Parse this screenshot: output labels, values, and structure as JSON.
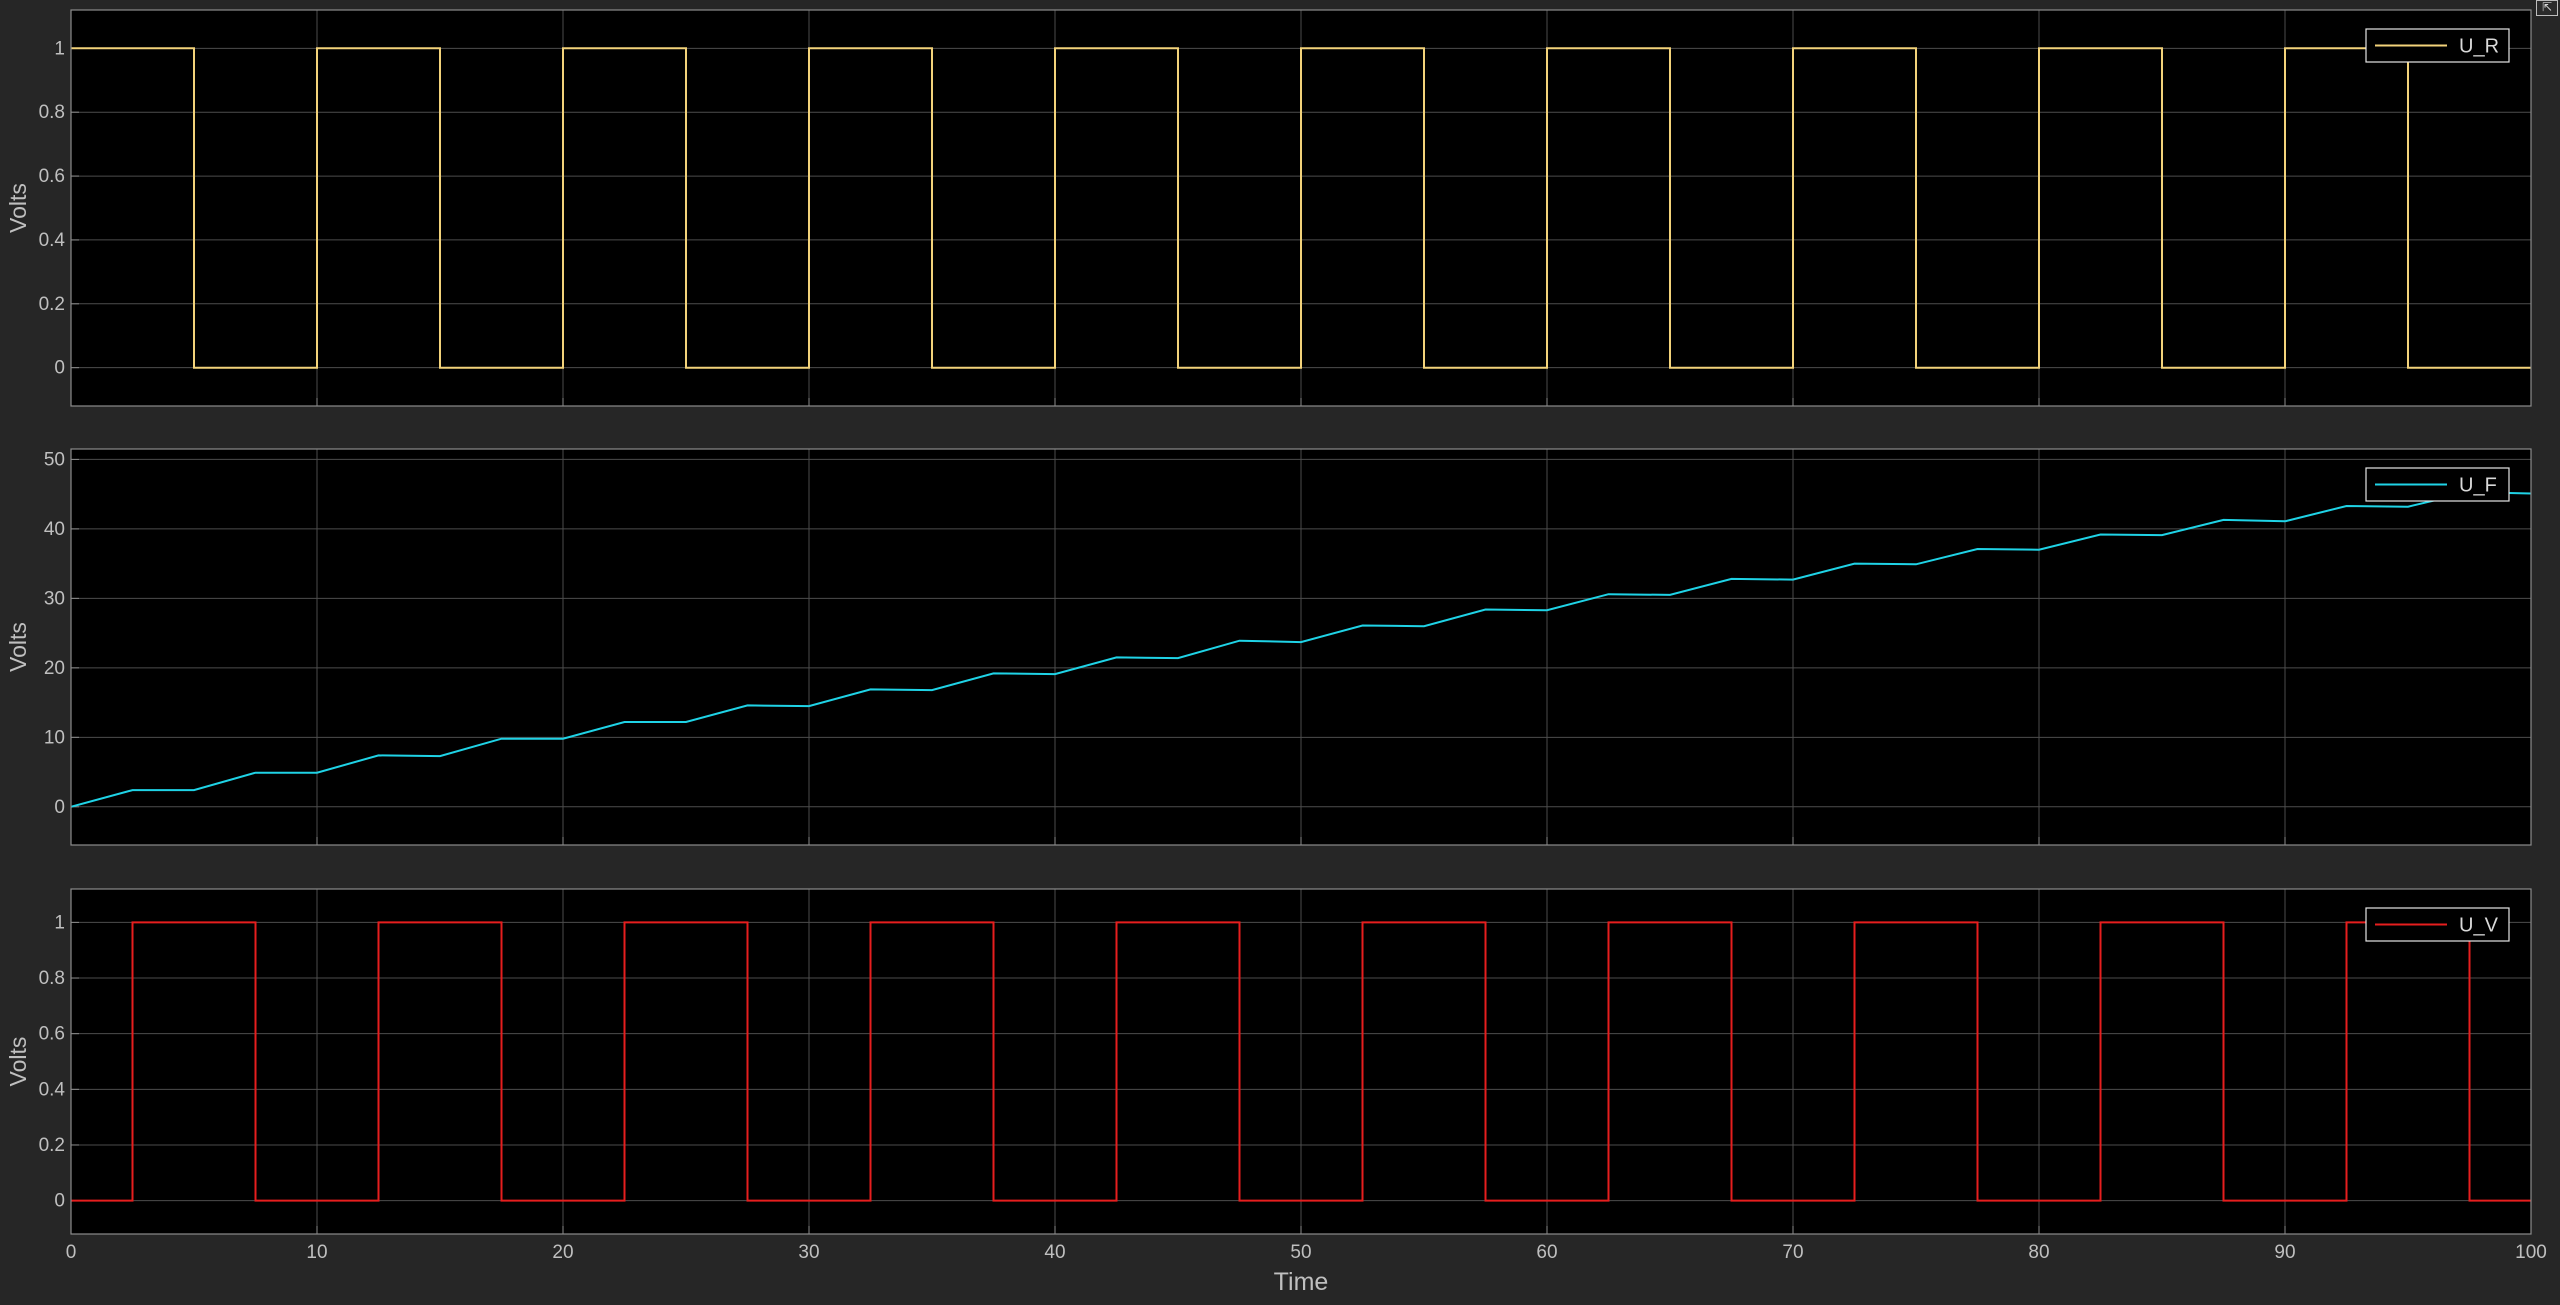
{
  "window": {
    "undock_icon": "undock-arrow-icon"
  },
  "colors": {
    "figure_background": "#262626",
    "axes_background": "#000000",
    "grid": "#4d4d4d",
    "axes_border": "#8c8c8c",
    "tick_text": "#bfbfbf",
    "label_text": "#bfbfbf",
    "legend_border": "#e6e6e6"
  },
  "chart_data": [
    {
      "type": "line",
      "id": "u_r",
      "ylabel": "Volts",
      "xlim": [
        0,
        100
      ],
      "ylim": [
        -0.12,
        1.12
      ],
      "yticks": [
        "0",
        "0.2",
        "0.4",
        "0.6",
        "0.8",
        "1"
      ],
      "ytick_values": [
        0,
        0.2,
        0.4,
        0.6,
        0.8,
        1
      ],
      "xticks_shown": false,
      "grid": true,
      "legend_placement": "top-right",
      "series": [
        {
          "name": "U_R",
          "color": "#f2d27a",
          "step": true,
          "x": [
            0,
            5,
            5,
            10,
            10,
            15,
            15,
            20,
            20,
            25,
            25,
            30,
            30,
            35,
            35,
            40,
            40,
            45,
            45,
            50,
            50,
            55,
            55,
            60,
            60,
            65,
            65,
            70,
            70,
            75,
            75,
            80,
            80,
            85,
            85,
            90,
            90,
            95,
            95,
            100
          ],
          "y": [
            1,
            1,
            0,
            0,
            1,
            1,
            0,
            0,
            1,
            1,
            0,
            0,
            1,
            1,
            0,
            0,
            1,
            1,
            0,
            0,
            1,
            1,
            0,
            0,
            1,
            1,
            0,
            0,
            1,
            1,
            0,
            0,
            1,
            1,
            0,
            0,
            1,
            1,
            0,
            0
          ]
        }
      ]
    },
    {
      "type": "line",
      "id": "u_f",
      "ylabel": "Volts",
      "xlim": [
        0,
        100
      ],
      "ylim": [
        -5.5,
        51.5
      ],
      "yticks": [
        "0",
        "10",
        "20",
        "30",
        "40",
        "50"
      ],
      "ytick_values": [
        0,
        10,
        20,
        30,
        40,
        50
      ],
      "xticks_shown": false,
      "grid": true,
      "legend_placement": "top-right",
      "series": [
        {
          "name": "U_F",
          "color": "#1fd3e6",
          "step": false,
          "x": [
            0,
            2.5,
            5,
            7.5,
            10,
            12.5,
            15,
            17.5,
            20,
            22.5,
            25,
            27.5,
            30,
            32.5,
            35,
            37.5,
            40,
            42.5,
            45,
            47.5,
            50,
            52.5,
            55,
            57.5,
            60,
            62.5,
            65,
            67.5,
            70,
            72.5,
            75,
            77.5,
            80,
            82.5,
            85,
            87.5,
            90,
            92.5,
            95,
            97.5,
            100
          ],
          "y": [
            0,
            2.4,
            2.4,
            4.9,
            4.9,
            7.4,
            7.3,
            9.8,
            9.8,
            12.2,
            12.2,
            14.6,
            14.5,
            16.9,
            16.8,
            19.2,
            19.1,
            21.5,
            21.4,
            23.9,
            23.7,
            26.1,
            26.0,
            28.4,
            28.3,
            30.6,
            30.5,
            32.8,
            32.7,
            35.0,
            34.9,
            37.1,
            37.0,
            39.2,
            39.1,
            41.3,
            41.1,
            43.3,
            43.2,
            45.3,
            45.1
          ]
        }
      ]
    },
    {
      "type": "line",
      "id": "u_v",
      "ylabel": "Volts",
      "xlabel": "Time",
      "xlim": [
        0,
        100
      ],
      "ylim": [
        -0.12,
        1.12
      ],
      "yticks": [
        "0",
        "0.2",
        "0.4",
        "0.6",
        "0.8",
        "1"
      ],
      "ytick_values": [
        0,
        0.2,
        0.4,
        0.6,
        0.8,
        1
      ],
      "xticks": [
        "0",
        "10",
        "20",
        "30",
        "40",
        "50",
        "60",
        "70",
        "80",
        "90",
        "100"
      ],
      "xtick_values": [
        0,
        10,
        20,
        30,
        40,
        50,
        60,
        70,
        80,
        90,
        100
      ],
      "xticks_shown": true,
      "grid": true,
      "legend_placement": "top-right",
      "series": [
        {
          "name": "U_V",
          "color": "#e61e1e",
          "step": true,
          "x": [
            0,
            2.5,
            2.5,
            7.5,
            7.5,
            12.5,
            12.5,
            17.5,
            17.5,
            22.5,
            22.5,
            27.5,
            27.5,
            32.5,
            32.5,
            37.5,
            37.5,
            42.5,
            42.5,
            47.5,
            47.5,
            52.5,
            52.5,
            57.5,
            57.5,
            62.5,
            62.5,
            67.5,
            67.5,
            72.5,
            72.5,
            77.5,
            77.5,
            82.5,
            82.5,
            87.5,
            87.5,
            92.5,
            92.5,
            97.5,
            97.5,
            100
          ],
          "y": [
            0,
            0,
            1,
            1,
            0,
            0,
            1,
            1,
            0,
            0,
            1,
            1,
            0,
            0,
            1,
            1,
            0,
            0,
            1,
            1,
            0,
            0,
            1,
            1,
            0,
            0,
            1,
            1,
            0,
            0,
            1,
            1,
            0,
            0,
            1,
            1,
            0,
            0,
            1,
            1,
            0,
            0
          ]
        }
      ]
    }
  ]
}
